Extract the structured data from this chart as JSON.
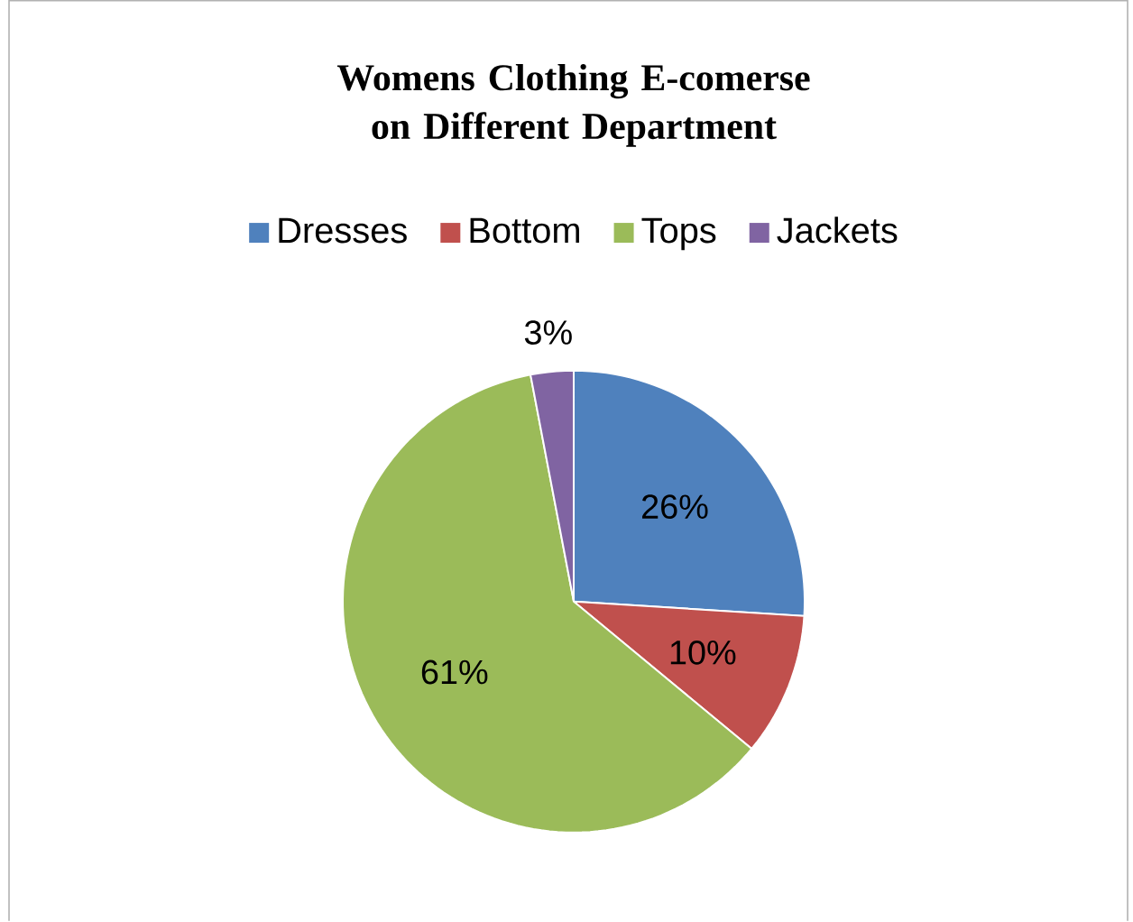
{
  "chart_data": {
    "type": "pie",
    "title": "Womens Clothing E-comerse on Different Department",
    "categories": [
      "Dresses",
      "Bottom",
      "Tops",
      "Jackets"
    ],
    "values": [
      26,
      10,
      61,
      3
    ],
    "colors": [
      "#4f81bd",
      "#c0504d",
      "#9bbb59",
      "#8064a2"
    ],
    "value_labels": [
      "26%",
      "10%",
      "61%",
      "3%"
    ],
    "legend": "top"
  }
}
